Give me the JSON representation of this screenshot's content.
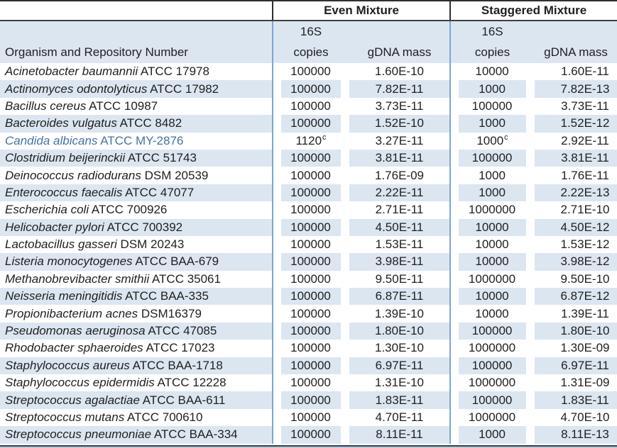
{
  "headers": {
    "organism": "Organism and Repository Number",
    "even_group": "Even Mixture",
    "staggered_group": "Staggered Mixture",
    "copies_line1": "16S",
    "copies_line2": "copies",
    "gdna": "gDNA mass"
  },
  "colors": {
    "stripe_blue": "#dce6f1",
    "grid_blue": "#7ea6d4",
    "dark_border": "#3f3f3f",
    "highlight_text": "#4472a8"
  },
  "rows": [
    {
      "organism": "Acinetobacter baumannii",
      "repository": "ATCC 17978",
      "even_copies": "100000",
      "even_note": "",
      "even_gdna": "1.60E-10",
      "stag_copies": "10000",
      "stag_note": "",
      "stag_gdna": "1.60E-11",
      "highlighted": false
    },
    {
      "organism": "Actinomyces odontolyticus",
      "repository": "ATCC 17982",
      "even_copies": "100000",
      "even_note": "",
      "even_gdna": "7.82E-11",
      "stag_copies": "1000",
      "stag_note": "",
      "stag_gdna": "7.82E-13",
      "highlighted": false
    },
    {
      "organism": "Bacillus cereus",
      "repository": "ATCC 10987",
      "even_copies": "100000",
      "even_note": "",
      "even_gdna": "3.73E-11",
      "stag_copies": "100000",
      "stag_note": "",
      "stag_gdna": "3.73E-11",
      "highlighted": false
    },
    {
      "organism": "Bacteroides vulgatus",
      "repository": "ATCC 8482",
      "even_copies": "100000",
      "even_note": "",
      "even_gdna": "1.52E-10",
      "stag_copies": "1000",
      "stag_note": "",
      "stag_gdna": "1.52E-12",
      "highlighted": false
    },
    {
      "organism": "Candida albicans",
      "repository": "ATCC MY-2876",
      "even_copies": "1120",
      "even_note": "c",
      "even_gdna": "3.27E-11",
      "stag_copies": "1000",
      "stag_note": "c",
      "stag_gdna": "2.92E-11",
      "highlighted": true
    },
    {
      "organism": "Clostridium beijerinckii",
      "repository": "ATCC 51743",
      "even_copies": "100000",
      "even_note": "",
      "even_gdna": "3.81E-11",
      "stag_copies": "100000",
      "stag_note": "",
      "stag_gdna": "3.81E-11",
      "highlighted": false
    },
    {
      "organism": "Deinococcus radiodurans",
      "repository": "DSM 20539",
      "even_copies": "100000",
      "even_note": "",
      "even_gdna": "1.76E-09",
      "stag_copies": "1000",
      "stag_note": "",
      "stag_gdna": "1.76E-11",
      "highlighted": false
    },
    {
      "organism": "Enterococcus faecalis",
      "repository": "ATCC 47077",
      "even_copies": "100000",
      "even_note": "",
      "even_gdna": "2.22E-11",
      "stag_copies": "1000",
      "stag_note": "",
      "stag_gdna": "2.22E-13",
      "highlighted": false
    },
    {
      "organism": "Escherichia coli",
      "repository": "ATCC 700926",
      "even_copies": "100000",
      "even_note": "",
      "even_gdna": "2.71E-11",
      "stag_copies": "1000000",
      "stag_note": "",
      "stag_gdna": "2.71E-10",
      "highlighted": false
    },
    {
      "organism": "Helicobacter pylori",
      "repository": "ATCC 700392",
      "even_copies": "100000",
      "even_note": "",
      "even_gdna": "4.50E-11",
      "stag_copies": "10000",
      "stag_note": "",
      "stag_gdna": "4.50E-12",
      "highlighted": false
    },
    {
      "organism": "Lactobacillus gasseri",
      "repository": "DSM 20243",
      "even_copies": "100000",
      "even_note": "",
      "even_gdna": "1.53E-11",
      "stag_copies": "10000",
      "stag_note": "",
      "stag_gdna": "1.53E-12",
      "highlighted": false
    },
    {
      "organism": "Listeria monocytogenes",
      "repository": "ATCC BAA-679",
      "even_copies": "100000",
      "even_note": "",
      "even_gdna": "3.98E-11",
      "stag_copies": "10000",
      "stag_note": "",
      "stag_gdna": "3.98E-12",
      "highlighted": false
    },
    {
      "organism": "Methanobrevibacter smithii",
      "repository": "ATCC 35061",
      "even_copies": "100000",
      "even_note": "",
      "even_gdna": "9.50E-11",
      "stag_copies": "1000000",
      "stag_note": "",
      "stag_gdna": "9.50E-10",
      "highlighted": false
    },
    {
      "organism": "Neisseria meningitidis",
      "repository": "ATCC BAA-335",
      "even_copies": "100000",
      "even_note": "",
      "even_gdna": "6.87E-11",
      "stag_copies": "10000",
      "stag_note": "",
      "stag_gdna": "6.87E-12",
      "highlighted": false
    },
    {
      "organism": "Propionibacterium acnes",
      "repository": "DSM16379",
      "even_copies": "100000",
      "even_note": "",
      "even_gdna": "1.39E-10",
      "stag_copies": "10000",
      "stag_note": "",
      "stag_gdna": "1.39E-11",
      "highlighted": false
    },
    {
      "organism": "Pseudomonas aeruginosa",
      "repository": "ATCC 47085",
      "even_copies": "100000",
      "even_note": "",
      "even_gdna": "1.80E-10",
      "stag_copies": "100000",
      "stag_note": "",
      "stag_gdna": "1.80E-10",
      "highlighted": false
    },
    {
      "organism": "Rhodobacter sphaeroides",
      "repository": "ATCC 17023",
      "even_copies": "100000",
      "even_note": "",
      "even_gdna": "1.30E-10",
      "stag_copies": "1000000",
      "stag_note": "",
      "stag_gdna": "1.30E-09",
      "highlighted": false
    },
    {
      "organism": "Staphylococcus aureus",
      "repository": "ATCC BAA-1718",
      "even_copies": "100000",
      "even_note": "",
      "even_gdna": "6.97E-11",
      "stag_copies": "100000",
      "stag_note": "",
      "stag_gdna": "6.97E-11",
      "highlighted": false
    },
    {
      "organism": "Staphylococcus epidermidis",
      "repository": "ATCC 12228",
      "even_copies": "100000",
      "even_note": "",
      "even_gdna": "1.31E-10",
      "stag_copies": "1000000",
      "stag_note": "",
      "stag_gdna": "1.31E-09",
      "highlighted": false
    },
    {
      "organism": "Streptococcus agalactiae",
      "repository": "ATCC BAA-611",
      "even_copies": "100000",
      "even_note": "",
      "even_gdna": "1.83E-11",
      "stag_copies": "100000",
      "stag_note": "",
      "stag_gdna": "1.83E-11",
      "highlighted": false
    },
    {
      "organism": "Streptococcus mutans",
      "repository": "ATCC 700610",
      "even_copies": "100000",
      "even_note": "",
      "even_gdna": "4.70E-11",
      "stag_copies": "1000000",
      "stag_note": "",
      "stag_gdna": "4.70E-10",
      "highlighted": false
    },
    {
      "organism": "Streptococcus pneumoniae",
      "repository": "ATCC BAA-334",
      "even_copies": "100000",
      "even_note": "",
      "even_gdna": "8.11E-11",
      "stag_copies": "1000",
      "stag_note": "",
      "stag_gdna": "8.11E-13",
      "highlighted": false
    }
  ]
}
